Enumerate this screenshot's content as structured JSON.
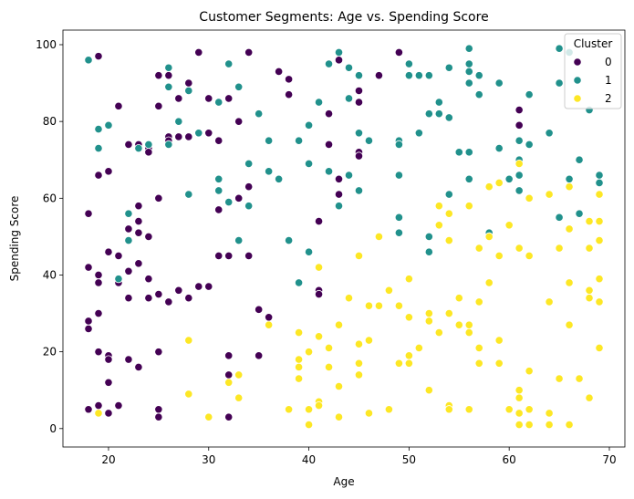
{
  "chart_data": {
    "type": "scatter",
    "title": "Customer Segments: Age vs. Spending Score",
    "xlabel": "Age",
    "ylabel": "Spending Score",
    "xlim": [
      15.45,
      71.55
    ],
    "ylim": [
      -4.8,
      103.8
    ],
    "xticks": [
      20,
      30,
      40,
      50,
      60,
      70
    ],
    "yticks": [
      0,
      20,
      40,
      60,
      80,
      100
    ],
    "grid": false,
    "legend": {
      "title": "Cluster",
      "placement": "top-right"
    },
    "series": [
      {
        "name": "0",
        "color": "#440154",
        "points": [
          [
            18,
            5
          ],
          [
            18,
            26
          ],
          [
            18,
            28
          ],
          [
            18,
            42
          ],
          [
            18,
            56
          ],
          [
            19,
            97
          ],
          [
            19,
            66
          ],
          [
            19,
            40
          ],
          [
            19,
            38
          ],
          [
            19,
            30
          ],
          [
            19,
            20
          ],
          [
            19,
            6
          ],
          [
            20,
            67
          ],
          [
            20,
            46
          ],
          [
            20,
            19
          ],
          [
            20,
            18
          ],
          [
            20,
            12
          ],
          [
            20,
            4
          ],
          [
            21,
            84
          ],
          [
            21,
            45
          ],
          [
            21,
            38
          ],
          [
            21,
            6
          ],
          [
            22,
            74
          ],
          [
            22,
            52
          ],
          [
            22,
            41
          ],
          [
            22,
            34
          ],
          [
            22,
            18
          ],
          [
            23,
            74
          ],
          [
            23,
            58
          ],
          [
            23,
            54
          ],
          [
            23,
            51
          ],
          [
            23,
            43
          ],
          [
            23,
            16
          ],
          [
            24,
            73
          ],
          [
            24,
            72
          ],
          [
            24,
            50
          ],
          [
            24,
            39
          ],
          [
            24,
            34
          ],
          [
            25,
            92
          ],
          [
            25,
            84
          ],
          [
            25,
            60
          ],
          [
            25,
            35
          ],
          [
            25,
            20
          ],
          [
            25,
            5
          ],
          [
            25,
            3
          ],
          [
            26,
            92
          ],
          [
            26,
            76
          ],
          [
            26,
            75
          ],
          [
            26,
            33
          ],
          [
            27,
            86
          ],
          [
            27,
            76
          ],
          [
            27,
            36
          ],
          [
            28,
            90
          ],
          [
            28,
            76
          ],
          [
            28,
            34
          ],
          [
            29,
            98
          ],
          [
            29,
            37
          ],
          [
            30,
            86
          ],
          [
            30,
            77
          ],
          [
            30,
            37
          ],
          [
            31,
            75
          ],
          [
            31,
            57
          ],
          [
            31,
            45
          ],
          [
            32,
            86
          ],
          [
            32,
            45
          ],
          [
            32,
            19
          ],
          [
            32,
            14
          ],
          [
            32,
            3
          ],
          [
            33,
            80
          ],
          [
            33,
            60
          ],
          [
            34,
            98
          ],
          [
            34,
            63
          ],
          [
            34,
            45
          ],
          [
            35,
            31
          ],
          [
            35,
            19
          ],
          [
            36,
            29
          ],
          [
            37,
            93
          ],
          [
            38,
            91
          ],
          [
            38,
            87
          ],
          [
            41,
            54
          ],
          [
            41,
            36
          ],
          [
            41,
            35
          ],
          [
            42,
            82
          ],
          [
            42,
            74
          ],
          [
            43,
            96
          ],
          [
            43,
            65
          ],
          [
            43,
            61
          ],
          [
            45,
            88
          ],
          [
            45,
            85
          ],
          [
            45,
            72
          ],
          [
            45,
            71
          ],
          [
            47,
            92
          ],
          [
            49,
            98
          ],
          [
            61,
            83
          ],
          [
            61,
            79
          ]
        ]
      },
      {
        "name": "1",
        "color": "#21918c",
        "points": [
          [
            18,
            96
          ],
          [
            19,
            78
          ],
          [
            19,
            73
          ],
          [
            20,
            79
          ],
          [
            21,
            39
          ],
          [
            22,
            56
          ],
          [
            22,
            49
          ],
          [
            23,
            73
          ],
          [
            24,
            74
          ],
          [
            26,
            94
          ],
          [
            26,
            89
          ],
          [
            26,
            74
          ],
          [
            27,
            80
          ],
          [
            28,
            88
          ],
          [
            28,
            61
          ],
          [
            29,
            77
          ],
          [
            31,
            85
          ],
          [
            31,
            65
          ],
          [
            31,
            62
          ],
          [
            32,
            95
          ],
          [
            32,
            59
          ],
          [
            33,
            89
          ],
          [
            33,
            49
          ],
          [
            34,
            69
          ],
          [
            34,
            58
          ],
          [
            35,
            82
          ],
          [
            36,
            75
          ],
          [
            36,
            67
          ],
          [
            37,
            65
          ],
          [
            38,
            49
          ],
          [
            39,
            75
          ],
          [
            39,
            38
          ],
          [
            40,
            79
          ],
          [
            40,
            69
          ],
          [
            40,
            46
          ],
          [
            41,
            85
          ],
          [
            42,
            95
          ],
          [
            42,
            67
          ],
          [
            43,
            98
          ],
          [
            43,
            58
          ],
          [
            44,
            94
          ],
          [
            44,
            86
          ],
          [
            44,
            66
          ],
          [
            45,
            92
          ],
          [
            45,
            77
          ],
          [
            45,
            62
          ],
          [
            46,
            75
          ],
          [
            49,
            75
          ],
          [
            49,
            74
          ],
          [
            49,
            66
          ],
          [
            49,
            55
          ],
          [
            49,
            51
          ],
          [
            50,
            95
          ],
          [
            50,
            92
          ],
          [
            51,
            92
          ],
          [
            51,
            77
          ],
          [
            52,
            92
          ],
          [
            52,
            82
          ],
          [
            52,
            50
          ],
          [
            52,
            46
          ],
          [
            53,
            85
          ],
          [
            53,
            82
          ],
          [
            54,
            94
          ],
          [
            54,
            81
          ],
          [
            54,
            61
          ],
          [
            55,
            72
          ],
          [
            56,
            99
          ],
          [
            56,
            95
          ],
          [
            56,
            93
          ],
          [
            56,
            90
          ],
          [
            56,
            72
          ],
          [
            56,
            65
          ],
          [
            57,
            92
          ],
          [
            57,
            87
          ],
          [
            58,
            51
          ],
          [
            58,
            50
          ],
          [
            59,
            90
          ],
          [
            59,
            73
          ],
          [
            60,
            65
          ],
          [
            61,
            75
          ],
          [
            61,
            70
          ],
          [
            61,
            66
          ],
          [
            61,
            62
          ],
          [
            62,
            87
          ],
          [
            62,
            74
          ],
          [
            64,
            77
          ],
          [
            65,
            99
          ],
          [
            65,
            90
          ],
          [
            65,
            55
          ],
          [
            66,
            98
          ],
          [
            66,
            65
          ],
          [
            67,
            70
          ],
          [
            67,
            56
          ],
          [
            68,
            83
          ],
          [
            69,
            66
          ],
          [
            69,
            64
          ]
        ]
      },
      {
        "name": "2",
        "color": "#fde725",
        "points": [
          [
            19,
            4
          ],
          [
            28,
            23
          ],
          [
            28,
            9
          ],
          [
            30,
            3
          ],
          [
            32,
            12
          ],
          [
            33,
            14
          ],
          [
            33,
            8
          ],
          [
            36,
            27
          ],
          [
            38,
            5
          ],
          [
            39,
            25
          ],
          [
            39,
            18
          ],
          [
            39,
            16
          ],
          [
            39,
            13
          ],
          [
            40,
            20
          ],
          [
            40,
            5
          ],
          [
            40,
            1
          ],
          [
            41,
            42
          ],
          [
            41,
            24
          ],
          [
            41,
            7
          ],
          [
            41,
            6
          ],
          [
            42,
            21
          ],
          [
            42,
            16
          ],
          [
            43,
            27
          ],
          [
            43,
            11
          ],
          [
            43,
            3
          ],
          [
            44,
            34
          ],
          [
            45,
            45
          ],
          [
            45,
            22
          ],
          [
            45,
            17
          ],
          [
            45,
            14
          ],
          [
            46,
            32
          ],
          [
            46,
            23
          ],
          [
            46,
            4
          ],
          [
            47,
            50
          ],
          [
            47,
            32
          ],
          [
            48,
            36
          ],
          [
            48,
            5
          ],
          [
            49,
            32
          ],
          [
            49,
            17
          ],
          [
            50,
            39
          ],
          [
            50,
            29
          ],
          [
            50,
            19
          ],
          [
            50,
            17
          ],
          [
            51,
            21
          ],
          [
            52,
            30
          ],
          [
            52,
            28
          ],
          [
            52,
            10
          ],
          [
            53,
            58
          ],
          [
            53,
            53
          ],
          [
            53,
            25
          ],
          [
            54,
            56
          ],
          [
            54,
            49
          ],
          [
            54,
            30
          ],
          [
            54,
            6
          ],
          [
            54,
            5
          ],
          [
            55,
            34
          ],
          [
            55,
            27
          ],
          [
            56,
            58
          ],
          [
            56,
            27
          ],
          [
            56,
            25
          ],
          [
            56,
            5
          ],
          [
            57,
            47
          ],
          [
            57,
            33
          ],
          [
            57,
            21
          ],
          [
            57,
            17
          ],
          [
            58,
            63
          ],
          [
            58,
            50
          ],
          [
            58,
            38
          ],
          [
            59,
            64
          ],
          [
            59,
            45
          ],
          [
            59,
            23
          ],
          [
            59,
            17
          ],
          [
            60,
            53
          ],
          [
            60,
            5
          ],
          [
            61,
            69
          ],
          [
            61,
            47
          ],
          [
            61,
            10
          ],
          [
            61,
            8
          ],
          [
            61,
            4
          ],
          [
            61,
            1
          ],
          [
            62,
            60
          ],
          [
            62,
            45
          ],
          [
            62,
            15
          ],
          [
            62,
            5
          ],
          [
            62,
            1
          ],
          [
            64,
            61
          ],
          [
            64,
            33
          ],
          [
            64,
            4
          ],
          [
            64,
            1
          ],
          [
            65,
            47
          ],
          [
            65,
            13
          ],
          [
            66,
            63
          ],
          [
            66,
            52
          ],
          [
            66,
            38
          ],
          [
            66,
            27
          ],
          [
            66,
            1
          ],
          [
            67,
            13
          ],
          [
            68,
            54
          ],
          [
            68,
            47
          ],
          [
            68,
            36
          ],
          [
            68,
            34
          ],
          [
            68,
            8
          ],
          [
            69,
            61
          ],
          [
            69,
            54
          ],
          [
            69,
            49
          ],
          [
            69,
            39
          ],
          [
            69,
            33
          ],
          [
            69,
            21
          ]
        ]
      }
    ]
  }
}
